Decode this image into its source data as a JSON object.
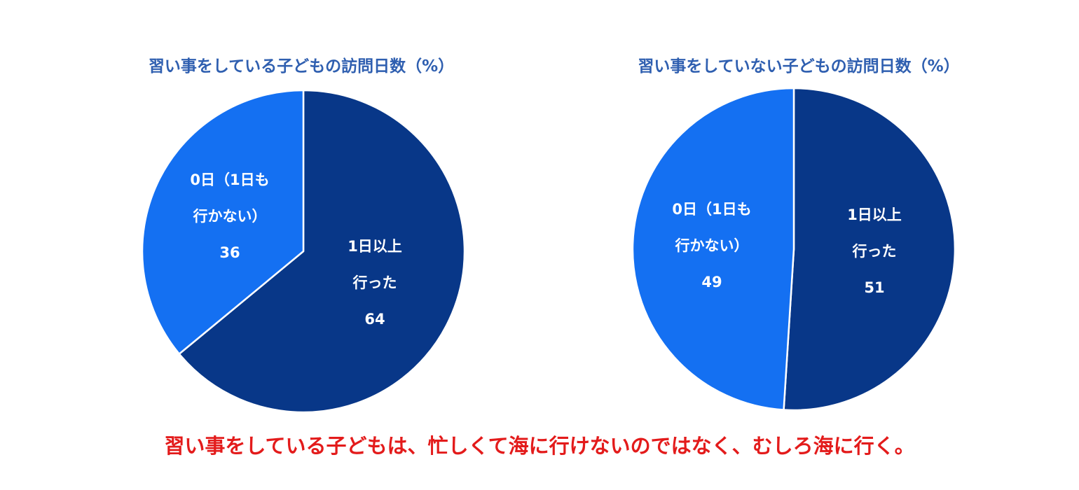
{
  "colors": {
    "dark_blue": "#083788",
    "light_blue": "#1470f2",
    "title_blue": "#2f5fb0",
    "caption_red": "#e31b1b",
    "separator": "#ffffff"
  },
  "chart_data": [
    {
      "type": "pie",
      "title": "習い事をしている子どもの訪問日数（%）",
      "slices": [
        {
          "label_lines": [
            "1日以上",
            "行った"
          ],
          "value": 64,
          "color": "#083788"
        },
        {
          "label_lines": [
            "0日（1日も",
            "行かない）"
          ],
          "value": 36,
          "color": "#1470f2"
        }
      ]
    },
    {
      "type": "pie",
      "title": "習い事をしていない子どもの訪問日数（%）",
      "slices": [
        {
          "label_lines": [
            "1日以上",
            "行った"
          ],
          "value": 51,
          "color": "#083788"
        },
        {
          "label_lines": [
            "0日（1日も",
            "行かない）"
          ],
          "value": 49,
          "color": "#1470f2"
        }
      ]
    }
  ],
  "caption": "習い事をしている子どもは、忙しくて海に行けないのではなく、むしろ海に行く。"
}
